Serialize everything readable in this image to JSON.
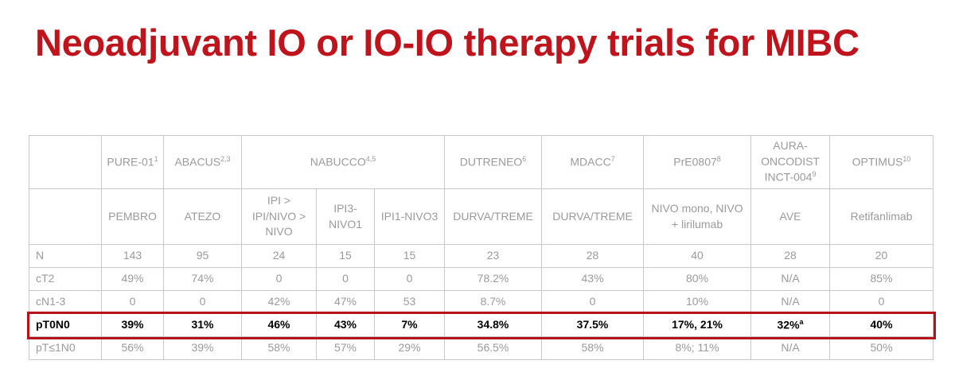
{
  "title": "Neoadjuvant IO or IO-IO therapy trials for MIBC",
  "table": {
    "trials": [
      {
        "name": "PURE-01",
        "sup": "1",
        "arms": [
          "PEMBRO"
        ]
      },
      {
        "name": "ABACUS",
        "sup": "2,3",
        "arms": [
          "ATEZO"
        ]
      },
      {
        "name": "NABUCCO",
        "sup": "4,5",
        "arms": [
          "IPI > IPI/NIVO > NIVO",
          "IPI3-NIVO1",
          "IPI1-NIVO3"
        ]
      },
      {
        "name": "DUTRENEO",
        "sup": "6",
        "arms": [
          "DURVA/TREME"
        ]
      },
      {
        "name": "MDACC",
        "sup": "7",
        "arms": [
          "DURVA/TREME"
        ]
      },
      {
        "name": "PrE0807",
        "sup": "8",
        "arms": [
          "NIVO mono, NIVO + lirilumab"
        ]
      },
      {
        "name": "AURA-ONCODIST INCT-004",
        "sup": "9",
        "arms": [
          "AVE"
        ]
      },
      {
        "name": "OPTIMUS",
        "sup": "10",
        "arms": [
          "Retifanlimab"
        ]
      }
    ],
    "rows": [
      {
        "label": "N",
        "cells": [
          "143",
          "95",
          "24",
          "15",
          "15",
          "23",
          "28",
          "40",
          "28",
          "20"
        ]
      },
      {
        "label": "cT2",
        "cells": [
          "49%",
          "74%",
          "0",
          "0",
          "0",
          "78.2%",
          "43%",
          "80%",
          "N/A",
          "85%"
        ]
      },
      {
        "label": "cN1-3",
        "cells": [
          "0",
          "0",
          "42%",
          "47%",
          "53",
          "8.7%",
          "0",
          "10%",
          "N/A",
          "0"
        ]
      },
      {
        "label": "pT0N0",
        "cells": [
          "39%",
          "31%",
          "46%",
          "43%",
          "7%",
          "34.8%",
          "37.5%",
          "17%, 21%",
          {
            "text": "32%",
            "sup": "a"
          },
          "40%"
        ]
      },
      {
        "label": "pT≤1N0",
        "cells": [
          "56%",
          "39%",
          "58%",
          "57%",
          "29%",
          "56.5%",
          "58%",
          "8%; 11%",
          "N/A",
          "50%"
        ]
      }
    ]
  }
}
